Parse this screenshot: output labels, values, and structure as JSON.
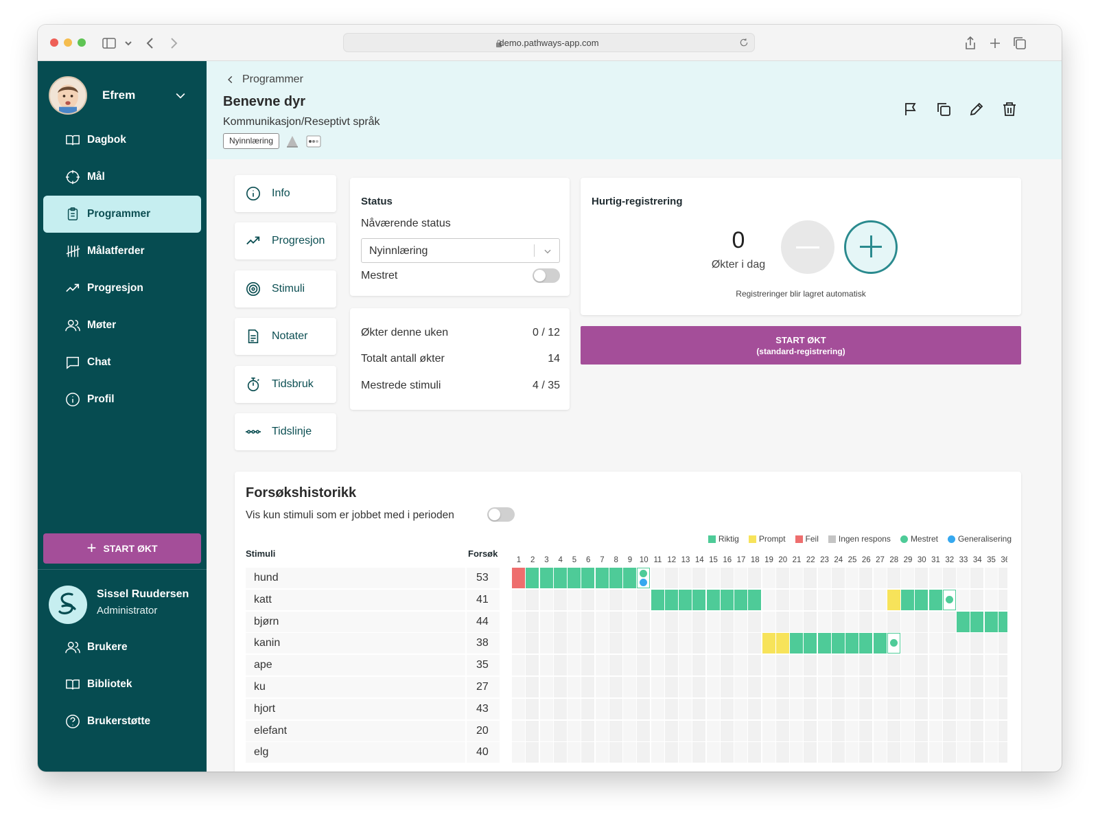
{
  "browser": {
    "url": "demo.pathways-app.com"
  },
  "sidebar": {
    "profile_name": "Efrem",
    "nav": [
      {
        "label": "Dagbok",
        "icon": "book-icon"
      },
      {
        "label": "Mål",
        "icon": "target-icon"
      },
      {
        "label": "Programmer",
        "icon": "clipboard-icon",
        "active": true
      },
      {
        "label": "Målatferder",
        "icon": "tally-icon"
      },
      {
        "label": "Progresjon",
        "icon": "trend-up-icon"
      },
      {
        "label": "Møter",
        "icon": "users-icon"
      },
      {
        "label": "Chat",
        "icon": "chat-icon"
      },
      {
        "label": "Profil",
        "icon": "info-icon"
      }
    ],
    "start_label": "START ØKT",
    "admin_name": "Sissel Ruudersen",
    "admin_role": "Administrator",
    "admin_nav": [
      {
        "label": "Brukere",
        "icon": "users-icon"
      },
      {
        "label": "Bibliotek",
        "icon": "book-icon"
      },
      {
        "label": "Brukerstøtte",
        "icon": "help-icon"
      }
    ]
  },
  "header": {
    "breadcrumb": "Programmer",
    "title": "Benevne dyr",
    "subtitle": "Kommunikasjon/Reseptivt språk",
    "tag": "Nyinnlæring"
  },
  "tabs": [
    {
      "label": "Info",
      "icon": "info-icon"
    },
    {
      "label": "Progresjon",
      "icon": "trend-up-icon"
    },
    {
      "label": "Stimuli",
      "icon": "target-rings-icon"
    },
    {
      "label": "Notater",
      "icon": "document-icon"
    },
    {
      "label": "Tidsbruk",
      "icon": "stopwatch-icon"
    },
    {
      "label": "Tidslinje",
      "icon": "timeline-icon"
    }
  ],
  "status": {
    "heading": "Status",
    "current_label": "Nåværende status",
    "current_value": "Nyinnlæring",
    "mastered_label": "Mestret",
    "mastered": false
  },
  "stats": [
    {
      "label": "Økter denne uken",
      "value": "0 / 12"
    },
    {
      "label": "Totalt antall økter",
      "value": "14"
    },
    {
      "label": "Mestrede stimuli",
      "value": "4 / 35"
    }
  ],
  "quick": {
    "heading": "Hurtig-registrering",
    "count": "0",
    "count_label": "Økter i dag",
    "note": "Registreringer blir lagret automatisk"
  },
  "start_session": {
    "line1": "START ØKT",
    "line2": "(standard-registrering)"
  },
  "history": {
    "title": "Forsøkshistorikk",
    "filter_label": "Vis kun stimuli som er jobbet med i perioden",
    "filter_on": false,
    "col_stimuli": "Stimuli",
    "col_trials": "Forsøk",
    "legend": [
      {
        "label": "Riktig",
        "color": "#4ecb98",
        "shape": "square"
      },
      {
        "label": "Prompt",
        "color": "#f7e35a",
        "shape": "square"
      },
      {
        "label": "Feil",
        "color": "#ee6e6e",
        "shape": "square"
      },
      {
        "label": "Ingen respons",
        "color": "#c4c4c4",
        "shape": "square"
      },
      {
        "label": "Mestret",
        "color": "#4ecb98",
        "shape": "dot"
      },
      {
        "label": "Generalisering",
        "color": "#35a8ef",
        "shape": "dot"
      }
    ],
    "columns": [
      "1",
      "2",
      "3",
      "4",
      "5",
      "6",
      "7",
      "8",
      "9",
      "10",
      "11",
      "12",
      "13",
      "14",
      "15",
      "16",
      "17",
      "18",
      "19",
      "20",
      "21",
      "22",
      "23",
      "24",
      "25",
      "26",
      "27",
      "28",
      "29",
      "30",
      "31",
      "32",
      "33",
      "34",
      "35",
      "36"
    ],
    "rows": [
      {
        "name": "hund",
        "count": "53",
        "cells": "FRRRRRRRRX"
      },
      {
        "name": "katt",
        "count": "41",
        "cells": "..........RRRRRRRR.........PRRRM"
      },
      {
        "name": "bjørn",
        "count": "44",
        "cells": "................................RRRR"
      },
      {
        "name": "kanin",
        "count": "38",
        "cells": "..................PPRRRRRRRM"
      },
      {
        "name": "ape",
        "count": "35",
        "cells": ""
      },
      {
        "name": "ku",
        "count": "27",
        "cells": ""
      },
      {
        "name": "hjort",
        "count": "43",
        "cells": ""
      },
      {
        "name": "elefant",
        "count": "20",
        "cells": ""
      },
      {
        "name": "elg",
        "count": "40",
        "cells": ""
      }
    ]
  }
}
